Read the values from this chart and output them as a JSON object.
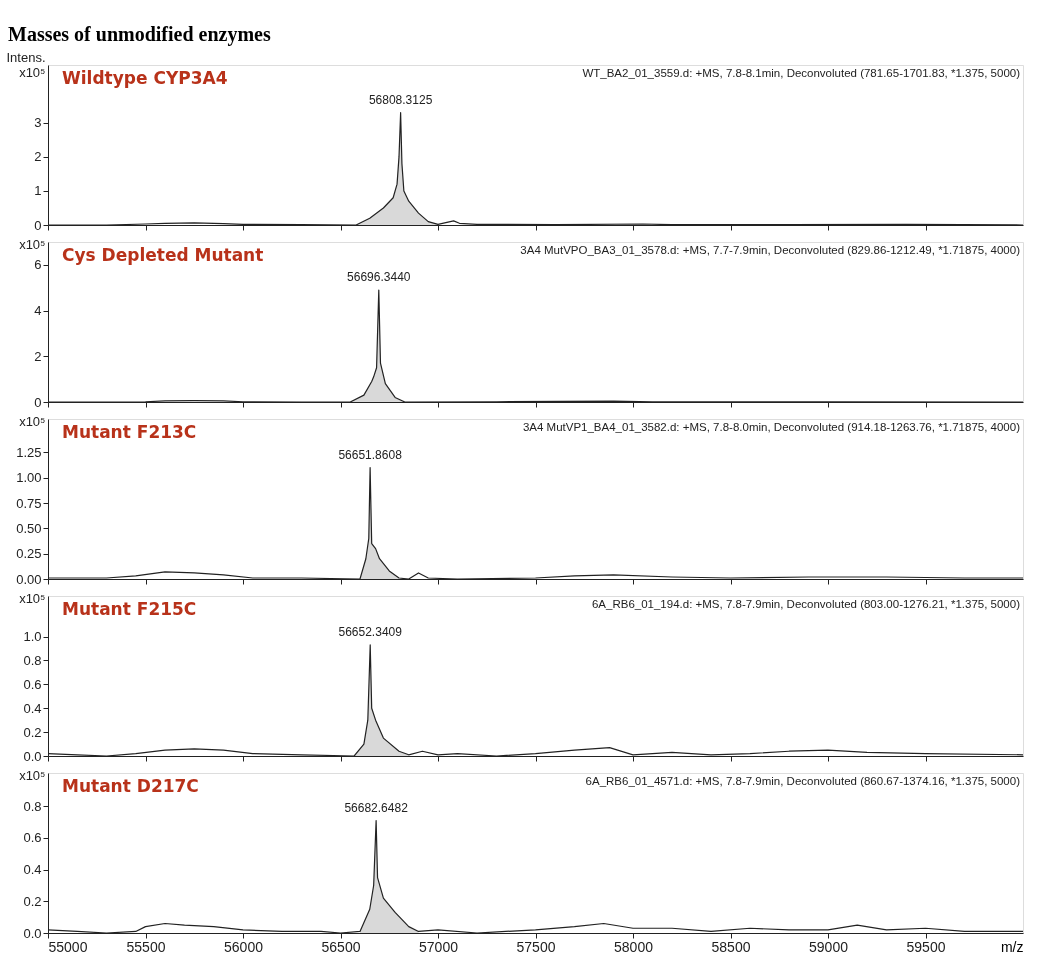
{
  "chart_data": [
    {
      "type": "line",
      "title": "Wildtype CYP3A4",
      "subtitle": "WT_BA2_01_3559.d: +MS, 7.8-8.1min, Deconvoluted (781.65-1701.83, *1.375, 5000)",
      "ylabel": "Intens.\nx10⁵",
      "annotations": [
        "Masses of unmodified enzymes",
        {
          "text": "56808.3125",
          "x": 56808.3125,
          "y": 3.3
        }
      ],
      "xlim": [
        55000,
        60000
      ],
      "xticks": [
        55000,
        55500,
        56000,
        56500,
        57000,
        57500,
        58000,
        58500,
        59000,
        59500
      ],
      "ylim": [
        0,
        4.7
      ],
      "yticks": [
        0,
        1,
        2,
        3
      ],
      "tick_labels": "y",
      "series": [
        {
          "type": "area",
          "color": "#d9d9d9",
          "x": [
            56580,
            56650,
            56720,
            56770,
            56790,
            56800,
            56808.3125,
            56815,
            56825,
            56850,
            56900,
            56950,
            57000
          ],
          "values": [
            0,
            0.2,
            0.5,
            0.8,
            1.2,
            2.0,
            3.3,
            1.8,
            1.0,
            0.7,
            0.35,
            0.1,
            0.02
          ]
        },
        {
          "type": "line",
          "color": "#222222",
          "x": [
            55000,
            55300,
            55500,
            55600,
            55750,
            55900,
            56000,
            56300,
            56580,
            56650,
            56720,
            56770,
            56790,
            56800,
            56808.3125,
            56815,
            56825,
            56850,
            56900,
            56950,
            57000,
            57080,
            57110,
            57200,
            57600,
            58050,
            58200,
            58800,
            59400,
            60000
          ],
          "values": [
            0,
            0,
            0.03,
            0.05,
            0.06,
            0.04,
            0.02,
            0.01,
            0,
            0.2,
            0.5,
            0.8,
            1.2,
            2.0,
            3.3,
            1.8,
            1.0,
            0.7,
            0.35,
            0.1,
            0.02,
            0.12,
            0.05,
            0.02,
            0.01,
            0.03,
            0.01,
            0.01,
            0.02,
            0
          ]
        }
      ]
    },
    {
      "type": "line",
      "title": "Cys Depleted Mutant",
      "subtitle": "3A4 MutVPO_BA3_01_3578.d: +MS, 7.7-7.9min, Deconvoluted (829.86-1212.49, *1.71875, 4000)",
      "ylabel": "x10⁵",
      "annotations": [
        {
          "text": "56696.3440",
          "x": 56696.344,
          "y": 4.9
        }
      ],
      "xlim": [
        55000,
        60000
      ],
      "xticks": [
        55000,
        55500,
        56000,
        56500,
        57000,
        57500,
        58000,
        58500,
        59000,
        59500
      ],
      "ylim": [
        0,
        7
      ],
      "yticks": [
        0,
        2,
        4,
        6
      ],
      "tick_labels": "y",
      "series": [
        {
          "type": "area",
          "color": "#d9d9d9",
          "x": [
            56550,
            56620,
            56660,
            56670,
            56685,
            56696.344,
            56705,
            56730,
            56780,
            56830
          ],
          "values": [
            0,
            0.3,
            0.9,
            1.1,
            1.5,
            4.9,
            1.7,
            0.8,
            0.2,
            0
          ]
        },
        {
          "type": "line",
          "color": "#222222",
          "x": [
            55000,
            55500,
            55600,
            55750,
            55900,
            56000,
            56300,
            56550,
            56620,
            56660,
            56670,
            56685,
            56696.344,
            56705,
            56730,
            56780,
            56830,
            57300,
            57900,
            58100,
            58500,
            59000,
            60000
          ],
          "values": [
            0,
            0.01,
            0.05,
            0.06,
            0.05,
            0.01,
            0,
            0,
            0.3,
            0.9,
            1.1,
            1.5,
            4.9,
            1.7,
            0.8,
            0.2,
            0,
            0.01,
            0.04,
            0.01,
            0.01,
            0.01,
            0
          ]
        }
      ]
    },
    {
      "type": "line",
      "title": "Mutant F213C",
      "subtitle": "3A4 MutVP1_BA4_01_3582.d: +MS, 7.8-8.0min, Deconvoluted (914.18-1263.76, *1.71875, 4000)",
      "ylabel": "x10⁵",
      "annotations": [
        {
          "text": "56651.8608",
          "x": 56651.8608,
          "y": 1.1
        }
      ],
      "xlim": [
        55000,
        60000
      ],
      "xticks": [
        55000,
        55500,
        56000,
        56500,
        57000,
        57500,
        58000,
        58500,
        59000,
        59500
      ],
      "ylim": [
        0,
        1.58
      ],
      "yticks": [
        {
          "value": 0,
          "label": "0.00"
        },
        {
          "value": 0.25,
          "label": "0.25"
        },
        {
          "value": 0.5,
          "label": "0.50"
        },
        {
          "value": 0.75,
          "label": "0.75"
        },
        {
          "value": 1,
          "label": "1.00"
        },
        {
          "value": 1.25,
          "label": "1.25"
        }
      ],
      "tick_labels": "y",
      "series": [
        {
          "type": "area",
          "color": "#d9d9d9",
          "x": [
            56600,
            56630,
            56645,
            56651.8608,
            56660,
            56680,
            56700,
            56750,
            56800
          ],
          "values": [
            0,
            0.2,
            0.4,
            1.1,
            0.35,
            0.3,
            0.2,
            0.08,
            0.01
          ]
        },
        {
          "type": "line",
          "color": "#222222",
          "x": [
            55000,
            55300,
            55450,
            55600,
            55750,
            55900,
            56050,
            56300,
            56600,
            56630,
            56645,
            56651.8608,
            56660,
            56680,
            56700,
            56750,
            56800,
            56850,
            56900,
            56950,
            57100,
            57500,
            57700,
            57900,
            58200,
            58500,
            58900,
            59300,
            59700,
            60000
          ],
          "values": [
            0.01,
            0.01,
            0.03,
            0.07,
            0.06,
            0.04,
            0.01,
            0.01,
            0,
            0.2,
            0.4,
            1.1,
            0.35,
            0.3,
            0.2,
            0.08,
            0.01,
            0.0,
            0.06,
            0.01,
            0.0,
            0.01,
            0.03,
            0.04,
            0.02,
            0.01,
            0.02,
            0.02,
            0.01,
            0.01
          ]
        }
      ]
    },
    {
      "type": "line",
      "title": "Mutant F215C",
      "subtitle": "6A_RB6_01_194.d: +MS, 7.8-7.9min, Deconvoluted (803.00-1276.21, *1.375, 5000)",
      "ylabel": "x10⁵",
      "annotations": [
        {
          "text": "56652.3409",
          "x": 56652.3409,
          "y": 0.93
        }
      ],
      "xlim": [
        55000,
        60000
      ],
      "xticks": [
        55000,
        55500,
        56000,
        56500,
        57000,
        57500,
        58000,
        58500,
        59000,
        59500
      ],
      "ylim": [
        0,
        1.34
      ],
      "yticks": [
        {
          "value": 0,
          "label": "0.0"
        },
        {
          "value": 0.2,
          "label": "0.2"
        },
        {
          "value": 0.4,
          "label": "0.4"
        },
        {
          "value": 0.6,
          "label": "0.6"
        },
        {
          "value": 0.8,
          "label": "0.8"
        },
        {
          "value": 1,
          "label": "1.0"
        }
      ],
      "tick_labels": "y",
      "series": [
        {
          "type": "area",
          "color": "#d9d9d9",
          "x": [
            56570,
            56620,
            56640,
            56652.3409,
            56660,
            56680,
            56720,
            56800,
            56850
          ],
          "values": [
            0,
            0.1,
            0.3,
            0.93,
            0.4,
            0.3,
            0.15,
            0.04,
            0.01
          ]
        },
        {
          "type": "line",
          "color": "#222222",
          "x": [
            55000,
            55150,
            55300,
            55450,
            55600,
            55750,
            55900,
            56050,
            56300,
            56570,
            56620,
            56640,
            56652.3409,
            56660,
            56680,
            56720,
            56800,
            56850,
            56920,
            57000,
            57100,
            57300,
            57500,
            57700,
            57880,
            58000,
            58200,
            58400,
            58600,
            58800,
            59000,
            59200,
            59500,
            60000
          ],
          "values": [
            0.02,
            0.01,
            0.0,
            0.02,
            0.05,
            0.06,
            0.05,
            0.02,
            0.01,
            0,
            0.1,
            0.3,
            0.93,
            0.4,
            0.3,
            0.15,
            0.04,
            0.01,
            0.04,
            0.01,
            0.02,
            0.0,
            0.02,
            0.05,
            0.07,
            0.01,
            0.03,
            0.01,
            0.02,
            0.04,
            0.05,
            0.03,
            0.02,
            0.01
          ]
        }
      ]
    },
    {
      "type": "line",
      "title": "Mutant D217C",
      "subtitle": "6A_RB6_01_4571.d: +MS, 7.8-7.9min, Deconvoluted (860.67-1374.16, *1.375, 5000)",
      "ylabel": "x10⁵",
      "xlabel": "m/z",
      "annotations": [
        {
          "text": "56682.6482",
          "x": 56682.6482,
          "y": 0.71
        }
      ],
      "xlim": [
        55000,
        60000
      ],
      "xticks": [
        55000,
        55500,
        56000,
        56500,
        57000,
        57500,
        58000,
        58500,
        59000,
        59500
      ],
      "ylim": [
        0,
        1.01
      ],
      "yticks": [
        {
          "value": 0,
          "label": "0.0"
        },
        {
          "value": 0.2,
          "label": "0.2"
        },
        {
          "value": 0.4,
          "label": "0.4"
        },
        {
          "value": 0.6,
          "label": "0.6"
        },
        {
          "value": 0.8,
          "label": "0.8"
        }
      ],
      "series": [
        {
          "type": "area",
          "color": "#d9d9d9",
          "x": [
            56600,
            56650,
            56670,
            56682.6482,
            56690,
            56720,
            56780,
            56850,
            56900
          ],
          "values": [
            0.01,
            0.15,
            0.3,
            0.71,
            0.35,
            0.22,
            0.13,
            0.04,
            0.01
          ]
        },
        {
          "type": "line",
          "color": "#222222",
          "x": [
            55000,
            55150,
            55300,
            55450,
            55500,
            55600,
            55700,
            55850,
            56000,
            56200,
            56400,
            56500,
            56600,
            56650,
            56670,
            56682.6482,
            56690,
            56720,
            56780,
            56850,
            56900,
            57000,
            57200,
            57500,
            57700,
            57850,
            58000,
            58200,
            58400,
            58600,
            58800,
            59000,
            59150,
            59300,
            59500,
            59700,
            60000
          ],
          "values": [
            0.02,
            0.01,
            0.0,
            0.01,
            0.04,
            0.06,
            0.05,
            0.04,
            0.02,
            0.01,
            0.01,
            0.0,
            0.01,
            0.15,
            0.3,
            0.71,
            0.35,
            0.22,
            0.13,
            0.04,
            0.01,
            0.02,
            0.0,
            0.02,
            0.04,
            0.06,
            0.03,
            0.03,
            0.01,
            0.03,
            0.02,
            0.02,
            0.05,
            0.02,
            0.03,
            0.01,
            0.01
          ]
        }
      ]
    }
  ]
}
